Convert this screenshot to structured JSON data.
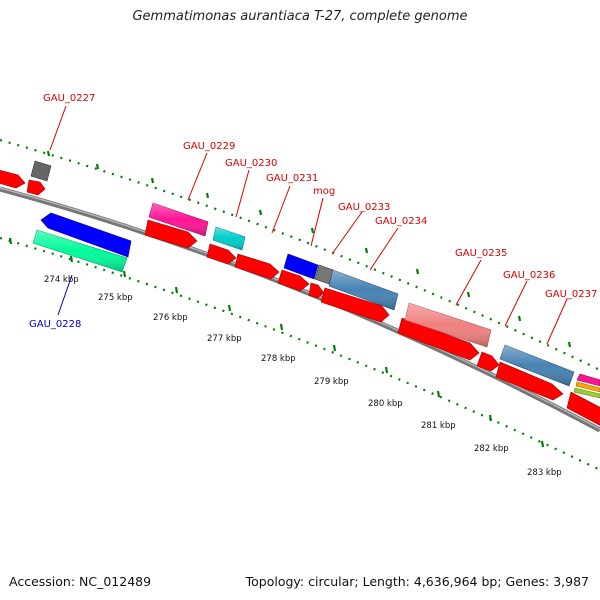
{
  "title": "Gemmatimonas aurantiaca T-27, complete genome",
  "footer": {
    "accession": "Accession: NC_012489",
    "summary": "Topology: circular; Length: 4,636,964 bp; Genes: 3,987"
  },
  "colors": {
    "forward_cds": "#ff0000",
    "tick_green": "#008000",
    "backbone": "#777777",
    "label_red": "#dd0000",
    "label_blue": "#0000cc"
  },
  "tick_labels": [
    "274 kbp",
    "275 kbp",
    "276 kbp",
    "277 kbp",
    "278 kbp",
    "279 kbp",
    "280 kbp",
    "281 kbp",
    "282 kbp",
    "283 kbp"
  ],
  "gene_labels": [
    {
      "name": "GAU_0227",
      "strand": "forward",
      "color": "#dd0000"
    },
    {
      "name": "GAU_0228",
      "strand": "reverse",
      "color": "#0000cc"
    },
    {
      "name": "GAU_0229",
      "strand": "forward",
      "color": "#dd0000"
    },
    {
      "name": "GAU_0230",
      "strand": "forward",
      "color": "#dd0000"
    },
    {
      "name": "GAU_0231",
      "strand": "forward",
      "color": "#dd0000"
    },
    {
      "name": "mog",
      "strand": "forward",
      "color": "#dd0000"
    },
    {
      "name": "GAU_0233",
      "strand": "forward",
      "color": "#dd0000"
    },
    {
      "name": "GAU_0234",
      "strand": "forward",
      "color": "#dd0000"
    },
    {
      "name": "GAU_0235",
      "strand": "forward",
      "color": "#dd0000"
    },
    {
      "name": "GAU_0236",
      "strand": "forward",
      "color": "#dd0000"
    },
    {
      "name": "GAU_0237",
      "strand": "forward",
      "color": "#dd0000"
    }
  ]
}
